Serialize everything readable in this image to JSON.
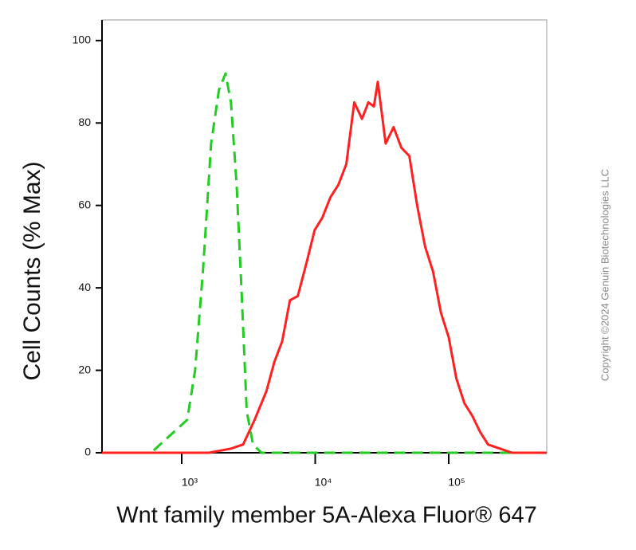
{
  "chart_data": {
    "type": "line",
    "xlabel": "Wnt family member 5A-Alexa Fluor® 647",
    "ylabel": "Cell Counts (% Max)",
    "watermark": "Copyright ©2024 Genuin Biotechnologies LLC",
    "xscale": "log",
    "xlim": [
      253,
      542000
    ],
    "ylim": [
      0,
      105
    ],
    "xticks": [
      {
        "value": 1000,
        "label": "10³"
      },
      {
        "value": 10000,
        "label": "10⁴"
      },
      {
        "value": 100000,
        "label": "10⁵"
      }
    ],
    "yticks": [
      0,
      20,
      40,
      60,
      80,
      100
    ],
    "series": [
      {
        "color": "#22cc22",
        "dash": true,
        "x": [
          253,
          590,
          1100,
          1260,
          1450,
          1660,
          1900,
          2130,
          2340,
          2580,
          2800,
          3070,
          3420,
          3960,
          542000
        ],
        "values": [
          0,
          0,
          8,
          20,
          45,
          75,
          88,
          92,
          85,
          65,
          40,
          10,
          2,
          0,
          0
        ]
      },
      {
        "color": "#ff2020",
        "dash": false,
        "x": [
          253,
          1600,
          2340,
          2880,
          3520,
          4320,
          4940,
          5650,
          6470,
          7400,
          8600,
          9900,
          11300,
          13000,
          14900,
          17100,
          19600,
          22400,
          25000,
          27500,
          29400,
          33700,
          38600,
          44200,
          50700,
          58000,
          66500,
          76200,
          87300,
          100000,
          114000,
          131000,
          150000,
          172000,
          197000,
          242000,
          298000,
          542000
        ],
        "values": [
          0,
          0,
          1,
          2,
          8,
          15,
          22,
          27,
          37,
          38,
          46,
          54,
          57,
          62,
          65,
          70,
          85,
          81,
          85,
          84,
          90,
          75,
          79,
          74,
          72,
          60,
          50,
          44,
          34,
          28,
          18,
          12,
          9,
          5,
          2,
          1,
          0,
          0
        ]
      }
    ]
  }
}
